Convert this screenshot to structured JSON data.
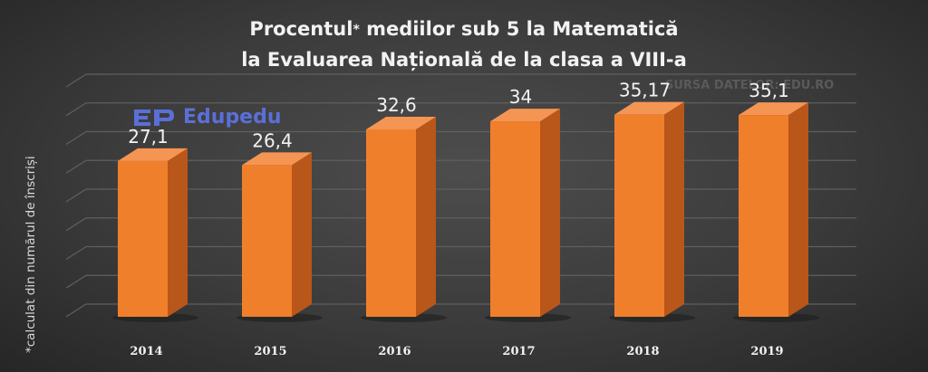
{
  "chart_data": {
    "type": "bar",
    "title_line1_a": "Procentul",
    "title_star": "*",
    "title_line1_b": " mediilor sub 5 la Matematică",
    "title_line2": "la Evaluarea Națională de la clasa a VIII-a",
    "source": "SURSA DATELOR: EDU.RO",
    "logo_text": "Edupedu",
    "footnote": "*calculat din numărul de înscriși",
    "categories": [
      "2014",
      "2015",
      "2016",
      "2017",
      "2018",
      "2019"
    ],
    "values": [
      27.1,
      26.4,
      32.6,
      34,
      35.17,
      35.1
    ],
    "value_labels": [
      "27,1",
      "26,4",
      "32,6",
      "34",
      "35,17",
      "35,1"
    ],
    "ylim": [
      0,
      40
    ],
    "grid": true,
    "legend": "none"
  },
  "colors": {
    "bar_front": "#f07f2c",
    "bar_side": "#b9561a",
    "bar_top": "#f59553",
    "gridline": "#5f5f5f",
    "text": "#f2f2f2"
  }
}
